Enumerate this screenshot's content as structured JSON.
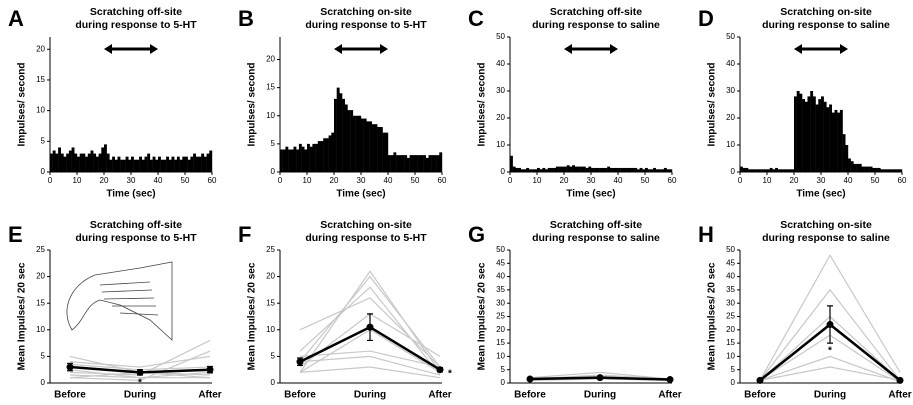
{
  "chart_data": [
    {
      "type": "histogram",
      "panel": "A",
      "title": [
        "Scratching off-site",
        "during response to 5-HT"
      ],
      "ylabel": "Impulses/ second",
      "xlabel": "Time (sec)",
      "bins": [
        0,
        1,
        2,
        3,
        4,
        5,
        6,
        7,
        8,
        9,
        10,
        11,
        12,
        13,
        14,
        15,
        16,
        17,
        18,
        19,
        20,
        21,
        22,
        23,
        24,
        25,
        26,
        27,
        28,
        29,
        30,
        31,
        32,
        33,
        34,
        35,
        36,
        37,
        38,
        39,
        40,
        41,
        42,
        43,
        44,
        45,
        46,
        47,
        48,
        49,
        50,
        51,
        52,
        53,
        54,
        55,
        56,
        57,
        58,
        59,
        60
      ],
      "values": [
        3,
        3.5,
        3,
        4,
        3,
        2.5,
        3,
        3.5,
        4,
        3,
        2.5,
        3,
        3,
        2.5,
        3,
        3.5,
        3,
        2.5,
        3,
        4,
        4.5,
        3,
        2,
        2.5,
        2,
        2.5,
        2,
        2,
        2.5,
        2,
        2.5,
        2,
        2,
        2.5,
        2,
        2.5,
        3,
        2,
        2.5,
        2,
        2.5,
        2,
        2,
        2.5,
        2,
        2.5,
        2,
        2.5,
        2,
        2.5,
        2.5,
        2,
        2.5,
        3,
        2.5,
        2.5,
        3,
        2.5,
        3,
        3.5
      ],
      "color": "#000000",
      "arrow": [
        20,
        40
      ],
      "xlim": [
        0,
        60
      ],
      "xticks": [
        0,
        10,
        20,
        30,
        40,
        50,
        60
      ],
      "ylim": [
        0,
        22
      ],
      "yticks": [
        0,
        5,
        10,
        15,
        20
      ]
    },
    {
      "type": "histogram",
      "panel": "B",
      "title": [
        "Scratching on-site",
        "during response to 5-HT"
      ],
      "ylabel": "Impulses/ second",
      "xlabel": "Time (sec)",
      "bins": [
        0,
        1,
        2,
        3,
        4,
        5,
        6,
        7,
        8,
        9,
        10,
        11,
        12,
        13,
        14,
        15,
        16,
        17,
        18,
        19,
        20,
        21,
        22,
        23,
        24,
        25,
        26,
        27,
        28,
        29,
        30,
        31,
        32,
        33,
        34,
        35,
        36,
        37,
        38,
        39,
        40,
        41,
        42,
        43,
        44,
        45,
        46,
        47,
        48,
        49,
        50,
        51,
        52,
        53,
        54,
        55,
        56,
        57,
        58,
        59,
        60
      ],
      "values": [
        4,
        4,
        4.5,
        4,
        4,
        4.5,
        4,
        5,
        4.5,
        4,
        5,
        4.5,
        5,
        5,
        5.5,
        5.5,
        6,
        6,
        6.5,
        7,
        13,
        15,
        14,
        13,
        12,
        11,
        11,
        10,
        10,
        10,
        9.5,
        9.5,
        9,
        9,
        8.5,
        8.5,
        8,
        8,
        7,
        7,
        3,
        3,
        3.5,
        3,
        3,
        3,
        3,
        2.5,
        3,
        3,
        3,
        3,
        3,
        3,
        2.5,
        3,
        3,
        3,
        3,
        3.5
      ],
      "color": "#000000",
      "arrow": [
        20,
        40
      ],
      "xlim": [
        0,
        60
      ],
      "xticks": [
        0,
        10,
        20,
        30,
        40,
        50,
        60
      ],
      "ylim": [
        0,
        24
      ],
      "yticks": [
        0,
        5,
        10,
        15,
        20
      ]
    },
    {
      "type": "histogram",
      "panel": "C",
      "title": [
        "Scratching off-site",
        "during response to saline"
      ],
      "ylabel": "Impulses/ second",
      "xlabel": "Time (sec)",
      "bins": [
        0,
        1,
        2,
        3,
        4,
        5,
        6,
        7,
        8,
        9,
        10,
        11,
        12,
        13,
        14,
        15,
        16,
        17,
        18,
        19,
        20,
        21,
        22,
        23,
        24,
        25,
        26,
        27,
        28,
        29,
        30,
        31,
        32,
        33,
        34,
        35,
        36,
        37,
        38,
        39,
        40,
        41,
        42,
        43,
        44,
        45,
        46,
        47,
        48,
        49,
        50,
        51,
        52,
        53,
        54,
        55,
        56,
        57,
        58,
        59,
        60
      ],
      "values": [
        6,
        2,
        1.5,
        1.5,
        1,
        1,
        1.5,
        1,
        1,
        1,
        1.5,
        1,
        1.5,
        1,
        1.5,
        1.5,
        1.5,
        2,
        2,
        2,
        2,
        2.5,
        2,
        2.5,
        2,
        2,
        2,
        2,
        1.5,
        2,
        1.5,
        1.5,
        1.5,
        1.5,
        1.5,
        1.5,
        2,
        1.5,
        1.5,
        1.5,
        1.5,
        1.5,
        1.5,
        1.5,
        1.5,
        1.5,
        1.5,
        1,
        1.5,
        1,
        1.5,
        1,
        1,
        1.5,
        1,
        1,
        1,
        1.5,
        1,
        1
      ],
      "color": "#000000",
      "arrow": [
        20,
        40
      ],
      "xlim": [
        0,
        60
      ],
      "xticks": [
        0,
        10,
        20,
        30,
        40,
        50,
        60
      ],
      "ylim": [
        0,
        50
      ],
      "yticks": [
        0,
        10,
        20,
        30,
        40,
        50
      ]
    },
    {
      "type": "histogram",
      "panel": "D",
      "title": [
        "Scratching on-site",
        "during response to saline"
      ],
      "ylabel": "Impulses/ second",
      "xlabel": "Time (sec)",
      "bins": [
        0,
        1,
        2,
        3,
        4,
        5,
        6,
        7,
        8,
        9,
        10,
        11,
        12,
        13,
        14,
        15,
        16,
        17,
        18,
        19,
        20,
        21,
        22,
        23,
        24,
        25,
        26,
        27,
        28,
        29,
        30,
        31,
        32,
        33,
        34,
        35,
        36,
        37,
        38,
        39,
        40,
        41,
        42,
        43,
        44,
        45,
        46,
        47,
        48,
        49,
        50,
        51,
        52,
        53,
        54,
        55,
        56,
        57,
        58,
        59,
        60
      ],
      "values": [
        2,
        1.5,
        1.5,
        1,
        1,
        1,
        1,
        1,
        1,
        1,
        1,
        1.5,
        1,
        1.5,
        1,
        1,
        1,
        1,
        1,
        1,
        28,
        30,
        29,
        27,
        26,
        28,
        30,
        28,
        25,
        27,
        28,
        26,
        24,
        25,
        22,
        23,
        22,
        23,
        14,
        10,
        5,
        4,
        3,
        3,
        3,
        2,
        2,
        2,
        2,
        1.5,
        1.5,
        1.5,
        1,
        1,
        1,
        1,
        1,
        1,
        1,
        1
      ],
      "color": "#000000",
      "arrow": [
        20,
        40
      ],
      "xlim": [
        0,
        60
      ],
      "xticks": [
        0,
        10,
        20,
        30,
        40,
        50,
        60
      ],
      "ylim": [
        0,
        50
      ],
      "yticks": [
        0,
        10,
        20,
        30,
        40,
        50
      ]
    },
    {
      "type": "line",
      "panel": "E",
      "title": [
        "Scratching off-site",
        "during response to 5-HT"
      ],
      "ylabel": "Mean Impulses/ 20 sec",
      "categories": [
        "Before",
        "During",
        "After"
      ],
      "ylim": [
        0,
        25
      ],
      "yticks": [
        0,
        5,
        10,
        15,
        20,
        25
      ],
      "annotations": [
        "*"
      ],
      "series": [
        {
          "color": "#c8c8c8",
          "values": [
            1.5,
            1,
            2
          ]
        },
        {
          "color": "#c8c8c8",
          "values": [
            2,
            1.5,
            8
          ]
        },
        {
          "color": "#c8c8c8",
          "values": [
            4,
            3,
            5
          ]
        },
        {
          "color": "#c8c8c8",
          "values": [
            1,
            2,
            1.5
          ]
        },
        {
          "color": "#c8c8c8",
          "values": [
            3.5,
            2.5,
            3
          ]
        },
        {
          "color": "#c8c8c8",
          "values": [
            2.5,
            1,
            1
          ]
        },
        {
          "color": "#c8c8c8",
          "values": [
            5,
            2,
            1
          ]
        },
        {
          "color": "#c8c8c8",
          "values": [
            1,
            0.5,
            6
          ]
        },
        {
          "color": "#000000",
          "values": [
            3,
            2,
            2.5
          ],
          "errors": [
            0.7,
            0.5,
            0.6
          ]
        }
      ]
    },
    {
      "type": "line",
      "panel": "F",
      "title": [
        "Scratching on-site",
        "during response to 5-HT"
      ],
      "ylabel": "Mean Impulses/ 20 sec",
      "categories": [
        "Before",
        "During",
        "After"
      ],
      "ylim": [
        0,
        25
      ],
      "yticks": [
        0,
        5,
        10,
        15,
        20,
        25
      ],
      "annotations": [
        "*"
      ],
      "series": [
        {
          "color": "#c8c8c8",
          "values": [
            2,
            21,
            2
          ]
        },
        {
          "color": "#c8c8c8",
          "values": [
            4,
            20,
            3
          ]
        },
        {
          "color": "#c8c8c8",
          "values": [
            6,
            18,
            1.5
          ]
        },
        {
          "color": "#c8c8c8",
          "values": [
            10,
            16,
            3
          ]
        },
        {
          "color": "#c8c8c8",
          "values": [
            2,
            10,
            2
          ]
        },
        {
          "color": "#c8c8c8",
          "values": [
            5,
            6,
            3
          ]
        },
        {
          "color": "#c8c8c8",
          "values": [
            3,
            13,
            5
          ]
        },
        {
          "color": "#c8c8c8",
          "values": [
            4,
            5,
            1.5
          ]
        },
        {
          "color": "#c8c8c8",
          "values": [
            2,
            3,
            1
          ]
        },
        {
          "color": "#000000",
          "values": [
            4,
            10.5,
            2.5
          ],
          "errors": [
            0.7,
            2.5,
            0.4
          ]
        }
      ]
    },
    {
      "type": "line",
      "panel": "G",
      "title": [
        "Scratching off-site",
        "during response to saline"
      ],
      "ylabel": "Mean Impulses/ 20 sec",
      "categories": [
        "Before",
        "During",
        "After"
      ],
      "ylim": [
        0,
        50
      ],
      "yticks": [
        0,
        5,
        10,
        15,
        20,
        25,
        30,
        35,
        40,
        45,
        50
      ],
      "series": [
        {
          "color": "#c8c8c8",
          "values": [
            1,
            2.5,
            1
          ]
        },
        {
          "color": "#c8c8c8",
          "values": [
            2,
            4,
            1.5
          ]
        },
        {
          "color": "#c8c8c8",
          "values": [
            1.5,
            3,
            1.5
          ]
        },
        {
          "color": "#c8c8c8",
          "values": [
            1,
            1.5,
            1
          ]
        },
        {
          "color": "#c8c8c8",
          "values": [
            2,
            2,
            1
          ]
        },
        {
          "color": "#000000",
          "values": [
            1.5,
            2,
            1.3
          ],
          "errors": [
            0.3,
            0.4,
            0.3
          ]
        }
      ]
    },
    {
      "type": "line",
      "panel": "H",
      "title": [
        "Scratching on-site",
        "during response to saline"
      ],
      "ylabel": "Mean Impulses/ 20 sec",
      "categories": [
        "Before",
        "During",
        "After"
      ],
      "ylim": [
        0,
        50
      ],
      "yticks": [
        0,
        5,
        10,
        15,
        20,
        25,
        30,
        35,
        40,
        45,
        50
      ],
      "annotations": [
        "*"
      ],
      "series": [
        {
          "color": "#c8c8c8",
          "values": [
            1,
            48,
            4
          ]
        },
        {
          "color": "#c8c8c8",
          "values": [
            1,
            35,
            1
          ]
        },
        {
          "color": "#c8c8c8",
          "values": [
            1,
            25,
            1
          ]
        },
        {
          "color": "#c8c8c8",
          "values": [
            1,
            18,
            0.5
          ]
        },
        {
          "color": "#c8c8c8",
          "values": [
            1,
            10,
            0.5
          ]
        },
        {
          "color": "#c8c8c8",
          "values": [
            1,
            6,
            1
          ]
        },
        {
          "color": "#000000",
          "values": [
            1,
            22,
            1
          ],
          "errors": [
            0.2,
            7,
            0.3
          ]
        }
      ]
    }
  ]
}
